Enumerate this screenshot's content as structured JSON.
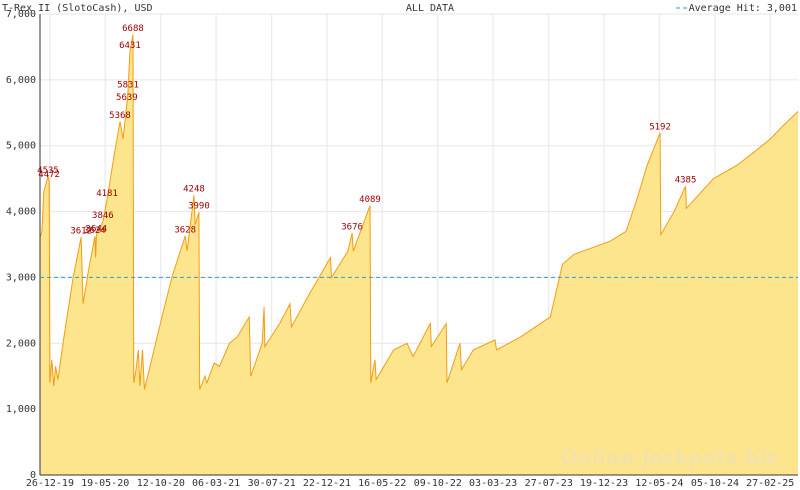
{
  "chart_data": {
    "type": "area",
    "title": "T-Rex II (SlotoCash), USD",
    "subtitle": "ALL DATA",
    "watermark": "Online-Jackpots.biz",
    "color": "#f39c12",
    "fill_color": "#fde58e",
    "grid": true,
    "xlim": [
      "2019-11-30",
      "2025-05-11"
    ],
    "ylim": [
      0,
      7000
    ],
    "yticks": [
      0,
      {
        "value": 1000,
        "label": "1,000"
      },
      {
        "value": 2000,
        "label": "2,000"
      },
      {
        "value": 3000,
        "label": "3,000"
      },
      {
        "value": 4000,
        "label": "4,000"
      },
      {
        "value": 5000,
        "label": "5,000"
      },
      {
        "value": 6000,
        "label": "6,000"
      },
      {
        "value": 7000,
        "label": "7,000"
      }
    ],
    "xticks": [
      {
        "value": "2019-12-26",
        "label": "26-12-19"
      },
      {
        "value": "2020-05-19",
        "label": "19-05-20"
      },
      {
        "value": "2020-10-12",
        "label": "12-10-20"
      },
      {
        "value": "2021-03-06",
        "label": "06-03-21"
      },
      {
        "value": "2021-07-30",
        "label": "30-07-21"
      },
      {
        "value": "2021-12-22",
        "label": "22-12-21"
      },
      {
        "value": "2022-05-16",
        "label": "16-05-22"
      },
      {
        "value": "2022-10-09",
        "label": "09-10-22"
      },
      {
        "value": "2023-03-03",
        "label": "03-03-23"
      },
      {
        "value": "2023-07-27",
        "label": "27-07-23"
      },
      {
        "value": "2023-12-19",
        "label": "19-12-23"
      },
      {
        "value": "2024-05-12",
        "label": "12-05-24"
      },
      {
        "value": "2024-10-05",
        "label": "05-10-24"
      },
      {
        "value": "2025-02-27",
        "label": "27-02-25"
      }
    ],
    "average_line": {
      "label": "Average Hit: 3,001",
      "value": 3001,
      "color": "#3399cc"
    },
    "x": [
      "2019-11-30",
      "2019-12-05",
      "2019-12-10",
      "2019-12-21",
      "2019-12-24",
      "2019-12-26",
      "2019-12-31",
      "2020-01-05",
      "2020-01-10",
      "2020-01-16",
      "2020-01-22",
      "2020-02-01",
      "2020-02-25",
      "2020-03-17",
      "2020-03-22",
      "2020-04-05",
      "2020-04-22",
      "2020-04-24",
      "2020-04-26",
      "2020-05-13",
      "2020-05-24",
      "2020-06-10",
      "2020-06-27",
      "2020-07-05",
      "2020-07-15",
      "2020-07-18",
      "2020-07-23",
      "2020-07-31",
      "2020-08-02",
      "2020-08-08",
      "2020-08-14",
      "2020-08-18",
      "2020-08-25",
      "2020-08-30",
      "2020-09-20",
      "2020-10-15",
      "2020-11-10",
      "2020-12-15",
      "2020-12-20",
      "2021-01-07",
      "2021-01-10",
      "2021-01-20",
      "2021-01-22",
      "2021-02-05",
      "2021-02-10",
      "2021-03-01",
      "2021-03-15",
      "2021-04-10",
      "2021-05-01",
      "2021-06-01",
      "2021-06-05",
      "2021-07-05",
      "2021-07-10",
      "2021-07-12",
      "2021-08-20",
      "2021-09-16",
      "2021-09-20",
      "2021-11-01",
      "2021-12-31",
      "2022-01-03",
      "2022-02-15",
      "2022-02-26",
      "2022-03-01",
      "2022-04-14",
      "2022-04-16",
      "2022-04-27",
      "2022-04-30",
      "2022-06-15",
      "2022-07-20",
      "2022-08-05",
      "2022-09-19",
      "2022-09-22",
      "2022-10-31",
      "2022-11-02",
      "2022-12-06",
      "2022-12-10",
      "2023-01-10",
      "2023-03-08",
      "2023-03-12",
      "2023-05-15",
      "2023-07-31",
      "2023-09-01",
      "2023-10-01",
      "2024-01-04",
      "2024-02-15",
      "2024-03-15",
      "2024-04-10",
      "2024-05-14",
      "2024-05-16",
      "2024-06-20",
      "2024-07-20",
      "2024-07-22",
      "2024-10-01",
      "2024-12-01",
      "2025-01-15",
      "2025-02-27",
      "2025-04-01",
      "2025-05-11"
    ],
    "values": [
      3600,
      3700,
      4300,
      4535,
      4472,
      1400,
      1750,
      1350,
      1650,
      1450,
      1700,
      2100,
      3000,
      3612,
      2600,
      3100,
      3624,
      3300,
      3644,
      3846,
      4181,
      4800,
      5368,
      5100,
      5639,
      5831,
      6431,
      6688,
      1400,
      1600,
      1900,
      1350,
      1900,
      1300,
      1800,
      2400,
      3000,
      3628,
      3400,
      4248,
      3800,
      3990,
      1300,
      1500,
      1400,
      1700,
      1650,
      2000,
      2100,
      2400,
      1500,
      2000,
      2550,
      1950,
      2300,
      2600,
      2250,
      2700,
      3300,
      3000,
      3400,
      3676,
      3400,
      4089,
      1400,
      1750,
      1450,
      1900,
      2000,
      1800,
      2300,
      1950,
      2300,
      1400,
      2000,
      1600,
      1900,
      2050,
      1900,
      2100,
      2400,
      3200,
      3350,
      3550,
      3700,
      4200,
      4700,
      5192,
      3650,
      4000,
      4385,
      4050,
      4500,
      4700,
      4900,
      5100,
      5300,
      5520
    ],
    "annotations": [
      {
        "x": "2019-12-21",
        "value": 4535
      },
      {
        "x": "2019-12-24",
        "value": 4472
      },
      {
        "x": "2020-03-17",
        "value": 3612
      },
      {
        "x": "2020-04-22",
        "value": 3624
      },
      {
        "x": "2020-04-26",
        "value": 3644
      },
      {
        "x": "2020-05-13",
        "value": 3846
      },
      {
        "x": "2020-05-24",
        "value": 4181
      },
      {
        "x": "2020-06-27",
        "value": 5368
      },
      {
        "x": "2020-07-15",
        "value": 5639
      },
      {
        "x": "2020-07-18",
        "value": 5831
      },
      {
        "x": "2020-07-23",
        "value": 6431
      },
      {
        "x": "2020-07-31",
        "value": 6688
      },
      {
        "x": "2020-12-15",
        "value": 3628
      },
      {
        "x": "2021-01-07",
        "value": 4248
      },
      {
        "x": "2021-01-20",
        "value": 3990
      },
      {
        "x": "2022-02-26",
        "value": 3676
      },
      {
        "x": "2022-04-14",
        "value": 4089
      },
      {
        "x": "2024-05-14",
        "value": 5192
      },
      {
        "x": "2024-07-20",
        "value": 4385
      }
    ]
  }
}
